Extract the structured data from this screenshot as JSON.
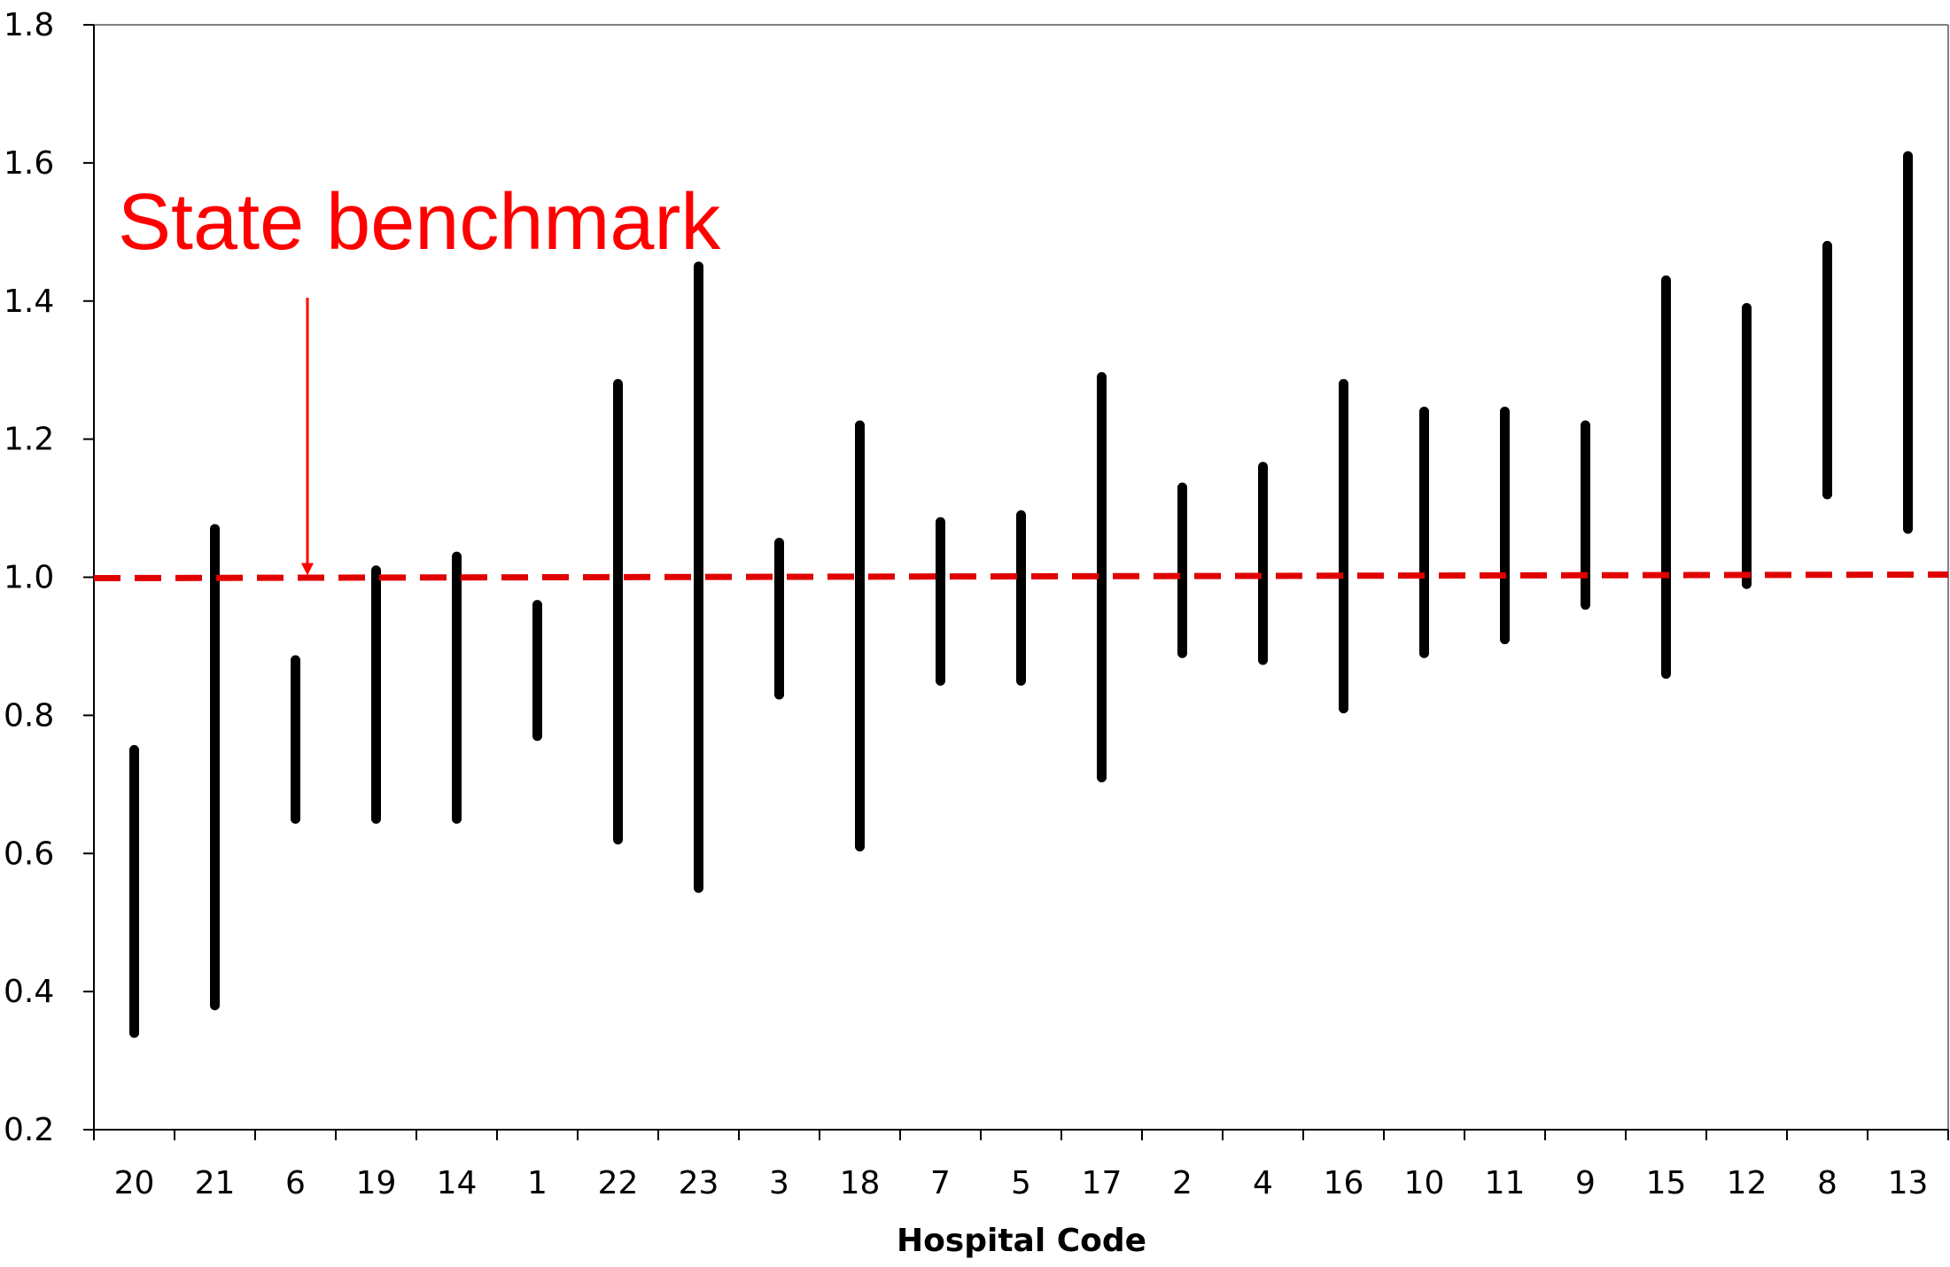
{
  "chart_data": {
    "type": "range",
    "xlabel": "Hospital Code",
    "ylabel": "",
    "ylim": [
      0.2,
      1.8
    ],
    "yticks": [
      "0.2",
      "0.4",
      "0.6",
      "0.8",
      "1.0",
      "1.2",
      "1.4",
      "1.6",
      "1.8"
    ],
    "categories": [
      "20",
      "21",
      "6",
      "19",
      "14",
      "1",
      "22",
      "23",
      "3",
      "18",
      "7",
      "5",
      "17",
      "2",
      "4",
      "16",
      "10",
      "11",
      "9",
      "15",
      "12",
      "8",
      "13"
    ],
    "intervals": [
      {
        "low": 0.34,
        "high": 0.75
      },
      {
        "low": 0.38,
        "high": 1.07
      },
      {
        "low": 0.65,
        "high": 0.88
      },
      {
        "low": 0.65,
        "high": 1.01
      },
      {
        "low": 0.65,
        "high": 1.03
      },
      {
        "low": 0.77,
        "high": 0.96
      },
      {
        "low": 0.62,
        "high": 1.28
      },
      {
        "low": 0.55,
        "high": 1.45
      },
      {
        "low": 0.83,
        "high": 1.05
      },
      {
        "low": 0.61,
        "high": 1.22
      },
      {
        "low": 0.85,
        "high": 1.08
      },
      {
        "low": 0.85,
        "high": 1.09
      },
      {
        "low": 0.71,
        "high": 1.29
      },
      {
        "low": 0.89,
        "high": 1.13
      },
      {
        "low": 0.88,
        "high": 1.16
      },
      {
        "low": 0.81,
        "high": 1.28
      },
      {
        "low": 0.89,
        "high": 1.24
      },
      {
        "low": 0.91,
        "high": 1.24
      },
      {
        "low": 0.96,
        "high": 1.22
      },
      {
        "low": 0.86,
        "high": 1.43
      },
      {
        "low": 0.99,
        "high": 1.39
      },
      {
        "low": 1.12,
        "high": 1.48
      },
      {
        "low": 1.07,
        "high": 1.61
      }
    ],
    "reference_line": {
      "value": 1.0,
      "style": "dashed",
      "color": "#e00000"
    },
    "annotation": {
      "text": "State benchmark",
      "color": "#ff0000"
    },
    "interval_color": "#000000",
    "grid": false
  }
}
